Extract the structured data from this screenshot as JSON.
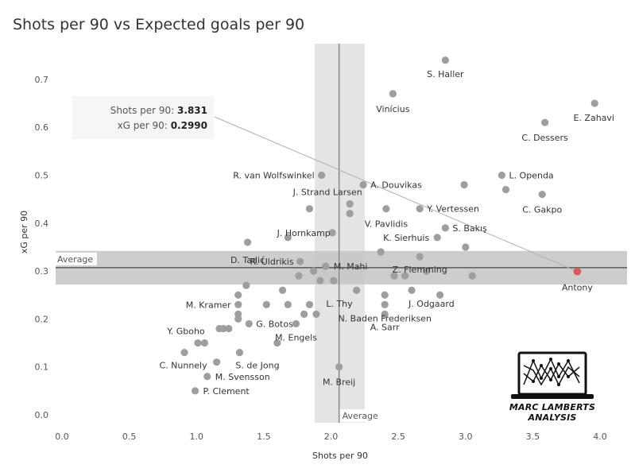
{
  "chart_data": {
    "type": "scatter",
    "title": "Shots per 90 vs Expected goals per 90",
    "xlabel": "Shots per 90",
    "ylabel": "xG per 90",
    "xlim": [
      0,
      4.0
    ],
    "ylim": [
      0,
      0.75
    ],
    "xticks": [
      "0.0",
      "0.5",
      "1.0",
      "1.5",
      "2.0",
      "2.5",
      "3.0",
      "3.5",
      "4.0"
    ],
    "yticks": [
      "0.0",
      "0.1",
      "0.2",
      "0.3",
      "0.4",
      "0.5",
      "0.6",
      "0.7"
    ],
    "grid": false,
    "reference_lines": {
      "x_average": 2.06,
      "x_average_label": "Average",
      "y_average": 0.307,
      "y_average_label": "Average",
      "x_band": [
        1.88,
        2.25
      ],
      "y_band": [
        0.272,
        0.342
      ]
    },
    "highlight": {
      "name": "Antony",
      "x": 3.831,
      "y": 0.299,
      "color": "#e05757"
    },
    "tooltip": {
      "shots_label": "Shots per 90:",
      "shots_value": "3.831",
      "xg_label": "xG per 90:",
      "xg_value": "0.2990"
    },
    "point_color": "#9e9e9e",
    "points": [
      {
        "name": "S. Haller",
        "x": 2.85,
        "y": 0.74
      },
      {
        "name": "Vinícius",
        "x": 2.46,
        "y": 0.67
      },
      {
        "name": "E. Zahavi",
        "x": 3.96,
        "y": 0.65
      },
      {
        "name": "C. Dessers",
        "x": 3.59,
        "y": 0.61
      },
      {
        "name": "R. van Wolfswinkel",
        "x": 1.93,
        "y": 0.5
      },
      {
        "name": "L. Openda",
        "x": 3.27,
        "y": 0.5
      },
      {
        "name": "A. Douvikas",
        "x": 2.24,
        "y": 0.48
      },
      {
        "name": "",
        "x": 2.99,
        "y": 0.48
      },
      {
        "name": "",
        "x": 3.3,
        "y": 0.47
      },
      {
        "name": "C. Gakpo",
        "x": 3.57,
        "y": 0.46
      },
      {
        "name": "J. Strand Larsen",
        "x": 2.14,
        "y": 0.44
      },
      {
        "name": "",
        "x": 1.84,
        "y": 0.43
      },
      {
        "name": "",
        "x": 2.14,
        "y": 0.42
      },
      {
        "name": "V. Pavlidis",
        "x": 2.41,
        "y": 0.43
      },
      {
        "name": "Y. Vertessen",
        "x": 2.66,
        "y": 0.43
      },
      {
        "name": "J. Hornkamp",
        "x": 2.01,
        "y": 0.38
      },
      {
        "name": "S. Bakış",
        "x": 2.85,
        "y": 0.39
      },
      {
        "name": "",
        "x": 1.68,
        "y": 0.37
      },
      {
        "name": "K. Sierhuis",
        "x": 2.79,
        "y": 0.37
      },
      {
        "name": "D. Tadić",
        "x": 1.38,
        "y": 0.36
      },
      {
        "name": "",
        "x": 3.0,
        "y": 0.35
      },
      {
        "name": "",
        "x": 2.37,
        "y": 0.34
      },
      {
        "name": "Z. Flemming",
        "x": 2.66,
        "y": 0.33
      },
      {
        "name": "R. Uldrikis",
        "x": 1.77,
        "y": 0.32
      },
      {
        "name": "M. Mahi",
        "x": 1.96,
        "y": 0.31
      },
      {
        "name": "",
        "x": 1.87,
        "y": 0.3
      },
      {
        "name": "",
        "x": 2.71,
        "y": 0.3
      },
      {
        "name": "",
        "x": 1.76,
        "y": 0.29
      },
      {
        "name": "",
        "x": 2.47,
        "y": 0.29
      },
      {
        "name": "",
        "x": 2.55,
        "y": 0.29
      },
      {
        "name": "",
        "x": 3.05,
        "y": 0.29
      },
      {
        "name": "",
        "x": 1.92,
        "y": 0.28
      },
      {
        "name": "",
        "x": 2.02,
        "y": 0.28
      },
      {
        "name": "",
        "x": 1.37,
        "y": 0.27
      },
      {
        "name": "L. Thy",
        "x": 2.19,
        "y": 0.26
      },
      {
        "name": "",
        "x": 1.64,
        "y": 0.26
      },
      {
        "name": "J. Odgaard",
        "x": 2.6,
        "y": 0.26
      },
      {
        "name": "",
        "x": 1.31,
        "y": 0.25
      },
      {
        "name": "",
        "x": 2.4,
        "y": 0.25
      },
      {
        "name": "",
        "x": 2.81,
        "y": 0.25
      },
      {
        "name": "M. Kramer",
        "x": 1.31,
        "y": 0.23
      },
      {
        "name": "",
        "x": 1.52,
        "y": 0.23
      },
      {
        "name": "",
        "x": 1.68,
        "y": 0.23
      },
      {
        "name": "",
        "x": 1.84,
        "y": 0.23
      },
      {
        "name": "N. Baden Frederiksen",
        "x": 2.4,
        "y": 0.23
      },
      {
        "name": "",
        "x": 1.31,
        "y": 0.21
      },
      {
        "name": "",
        "x": 1.8,
        "y": 0.21
      },
      {
        "name": "",
        "x": 1.89,
        "y": 0.21
      },
      {
        "name": "A. Sarr",
        "x": 2.4,
        "y": 0.21
      },
      {
        "name": "",
        "x": 1.31,
        "y": 0.2
      },
      {
        "name": "G. Botos",
        "x": 1.39,
        "y": 0.19
      },
      {
        "name": "M. Engels",
        "x": 1.74,
        "y": 0.19
      },
      {
        "name": "",
        "x": 1.17,
        "y": 0.18
      },
      {
        "name": "",
        "x": 1.2,
        "y": 0.18
      },
      {
        "name": "",
        "x": 1.24,
        "y": 0.18
      },
      {
        "name": "Y. Gboho",
        "x": 1.01,
        "y": 0.15
      },
      {
        "name": "",
        "x": 1.06,
        "y": 0.15
      },
      {
        "name": "",
        "x": 1.6,
        "y": 0.15
      },
      {
        "name": "S. de Jong",
        "x": 1.32,
        "y": 0.13
      },
      {
        "name": "",
        "x": 0.91,
        "y": 0.13
      },
      {
        "name": "C. Nunnely",
        "x": 1.15,
        "y": 0.11
      },
      {
        "name": "M. Breij",
        "x": 2.06,
        "y": 0.1
      },
      {
        "name": "M. Svensson",
        "x": 1.08,
        "y": 0.08
      },
      {
        "name": "P. Clement",
        "x": 0.99,
        "y": 0.05
      }
    ]
  },
  "logo": {
    "text": "MARC LAMBERTS ANALYSIS",
    "icon": "laptop-chart-icon"
  }
}
